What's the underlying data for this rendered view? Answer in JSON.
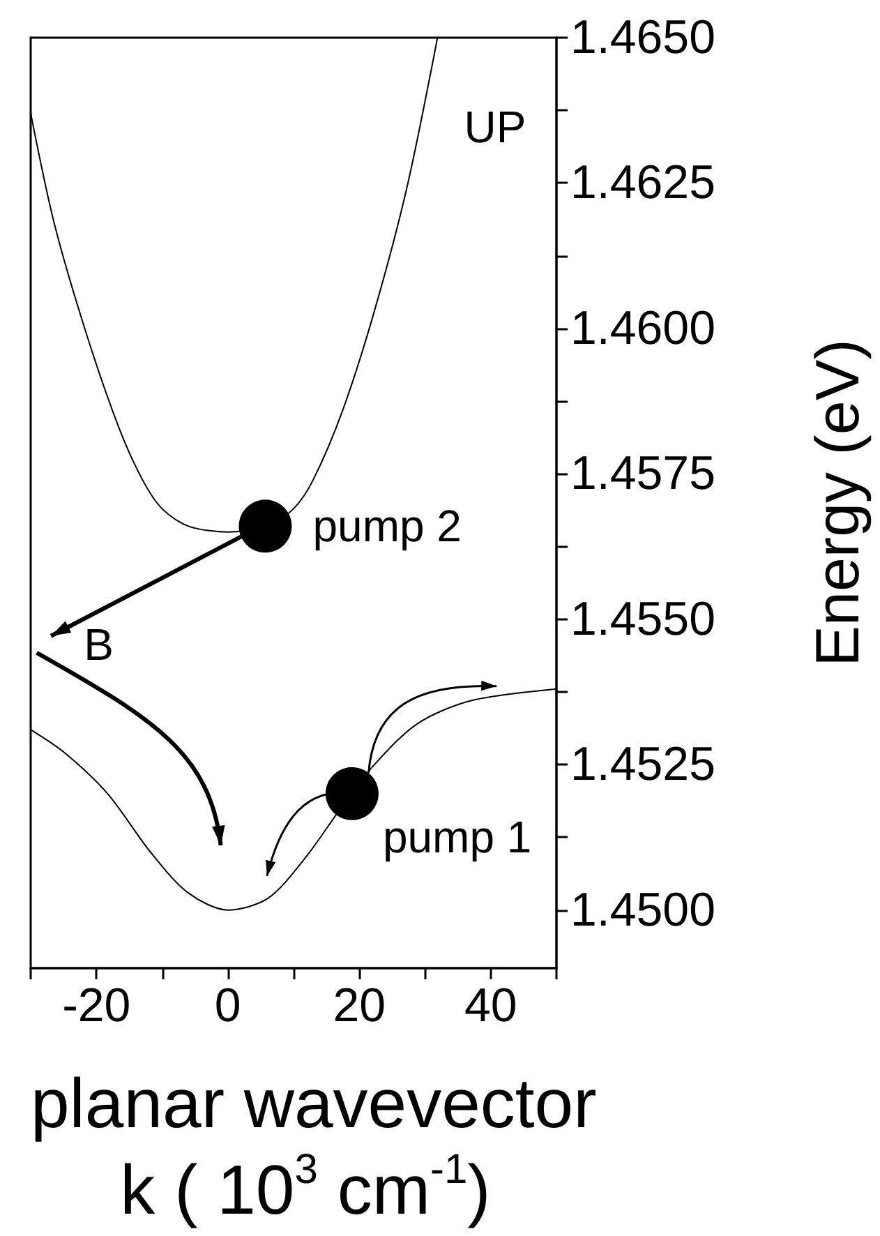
{
  "chart_data": {
    "type": "line",
    "xlabel": "planar wavevector\nk ( 10$^{3}$ cm$^{-1}$)",
    "ylabel": "Energy (eV)",
    "xlim": [
      -30,
      50
    ],
    "ylim": [
      1.449,
      1.465
    ],
    "xticks": [
      {
        "value": -30,
        "label": null
      },
      {
        "value": -20,
        "label": "-20"
      },
      {
        "value": -10,
        "label": null
      },
      {
        "value": 0,
        "label": "0"
      },
      {
        "value": 10,
        "label": null
      },
      {
        "value": 20,
        "label": "20"
      },
      {
        "value": 30,
        "label": null
      },
      {
        "value": 40,
        "label": "40"
      },
      {
        "value": 50,
        "label": null
      }
    ],
    "yticks": [
      {
        "value": 1.45,
        "label": "1.4500"
      },
      {
        "value": 1.45125,
        "label": null
      },
      {
        "value": 1.4525,
        "label": "1.4525"
      },
      {
        "value": 1.45375,
        "label": null
      },
      {
        "value": 1.455,
        "label": "1.4550"
      },
      {
        "value": 1.45625,
        "label": null
      },
      {
        "value": 1.4575,
        "label": "1.4575"
      },
      {
        "value": 1.45875,
        "label": null
      },
      {
        "value": 1.46,
        "label": "1.4600"
      },
      {
        "value": 1.46125,
        "label": null
      },
      {
        "value": 1.4625,
        "label": "1.4625"
      },
      {
        "value": 1.46375,
        "label": null
      },
      {
        "value": 1.465,
        "label": "1.4650"
      }
    ],
    "grid": false,
    "line_style": "solid",
    "marker": "none",
    "series": [
      {
        "color": "#000000",
        "x": [
          -30,
          -26.4,
          -21.5,
          -16.6,
          -13,
          -10,
          -6,
          0,
          6,
          10,
          13,
          17.5,
          22.3,
          27.2,
          31.9
        ],
        "values": [
          1.4637,
          1.4618,
          1.4599,
          1.4583,
          1.4574,
          1.4569,
          1.4566,
          1.4565,
          1.4566,
          1.4569,
          1.4574,
          1.4586,
          1.4603,
          1.4624,
          1.465
        ]
      },
      {
        "color": "#000000",
        "x": [
          -30,
          -24.8,
          -18.3,
          -11.8,
          -6.1,
          0,
          6.1,
          11.8,
          17.5,
          22.3,
          28.8,
          37,
          50
        ],
        "values": [
          1.4531,
          1.4527,
          1.452,
          1.451,
          1.4503,
          1.45,
          1.4502,
          1.4509,
          1.4518,
          1.4525,
          1.4532,
          1.4536,
          1.4538
        ]
      },
      {
        "type": "scatter",
        "marker": "circle",
        "color": "#000000",
        "x": [
          5.7
        ],
        "values": [
          1.4566
        ]
      },
      {
        "type": "scatter",
        "marker": "circle",
        "color": "#000000",
        "x": [
          18.9
        ],
        "values": [
          1.452
        ]
      }
    ],
    "annotations": [
      "UP",
      "B",
      {
        "text": "pump 2",
        "x": 5.7,
        "y": 1.4566
      },
      {
        "text": "pump 1",
        "x": 18.9,
        "y": 1.452
      }
    ]
  }
}
